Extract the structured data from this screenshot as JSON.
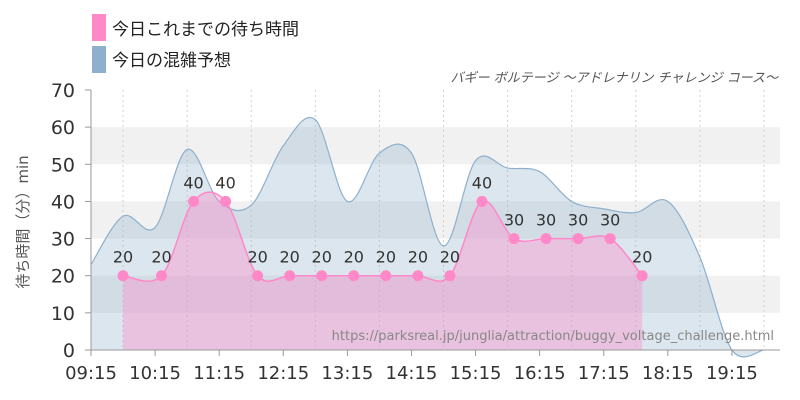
{
  "chart_data": {
    "type": "area",
    "title": "バギー ボルテージ 〜アドレナリン チャレンジ コース〜",
    "ylabel": "待ち時間（分）min",
    "xlabel": "",
    "ylim": [
      0,
      70
    ],
    "y_ticks": [
      0,
      10,
      20,
      30,
      40,
      50,
      60,
      70
    ],
    "xlim": [
      "09:15",
      "20:00"
    ],
    "x_ticks": [
      "09:15",
      "10:15",
      "11:15",
      "12:15",
      "13:15",
      "14:15",
      "15:15",
      "16:15",
      "17:15",
      "18:15",
      "19:15"
    ],
    "grid": "horizontal bands",
    "legend_position": "top-left",
    "source": "https://parksreal.jp/junglia/attraction/buggy_voltage_challenge.html",
    "series": [
      {
        "name": "今日これまでの待ち時間",
        "color": "#ff88c8",
        "points": [
          {
            "x": "09:45",
            "y": 20
          },
          {
            "x": "10:21",
            "y": 20
          },
          {
            "x": "10:51",
            "y": 40
          },
          {
            "x": "11:21",
            "y": 40
          },
          {
            "x": "11:51",
            "y": 20
          },
          {
            "x": "12:21",
            "y": 20
          },
          {
            "x": "12:51",
            "y": 20
          },
          {
            "x": "13:21",
            "y": 20
          },
          {
            "x": "13:51",
            "y": 20
          },
          {
            "x": "14:21",
            "y": 20
          },
          {
            "x": "14:51",
            "y": 20
          },
          {
            "x": "15:21",
            "y": 40
          },
          {
            "x": "15:51",
            "y": 30
          },
          {
            "x": "16:21",
            "y": 30
          },
          {
            "x": "16:51",
            "y": 30
          },
          {
            "x": "17:21",
            "y": 30
          },
          {
            "x": "17:51",
            "y": 20
          }
        ]
      },
      {
        "name": "今日の混雑予想",
        "color": "#8eb0cc",
        "points": [
          {
            "x": "09:15",
            "y": 23
          },
          {
            "x": "09:45",
            "y": 36
          },
          {
            "x": "10:15",
            "y": 33
          },
          {
            "x": "10:45",
            "y": 54
          },
          {
            "x": "11:15",
            "y": 40
          },
          {
            "x": "11:45",
            "y": 39
          },
          {
            "x": "12:15",
            "y": 55
          },
          {
            "x": "12:45",
            "y": 62
          },
          {
            "x": "13:15",
            "y": 40
          },
          {
            "x": "13:45",
            "y": 53
          },
          {
            "x": "14:15",
            "y": 53
          },
          {
            "x": "14:45",
            "y": 28
          },
          {
            "x": "15:15",
            "y": 51
          },
          {
            "x": "15:45",
            "y": 49
          },
          {
            "x": "16:15",
            "y": 48
          },
          {
            "x": "16:45",
            "y": 40
          },
          {
            "x": "17:15",
            "y": 38
          },
          {
            "x": "17:45",
            "y": 37
          },
          {
            "x": "18:15",
            "y": 40
          },
          {
            "x": "18:45",
            "y": 25
          },
          {
            "x": "19:15",
            "y": 0
          },
          {
            "x": "19:45",
            "y": 0
          }
        ]
      }
    ]
  }
}
